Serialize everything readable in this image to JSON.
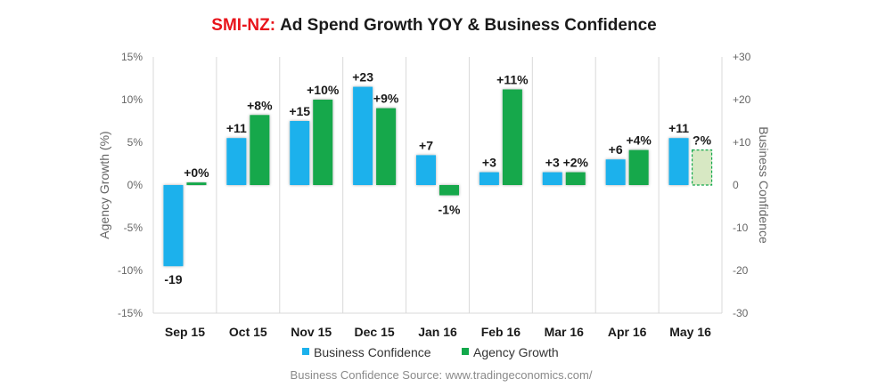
{
  "chart_data": {
    "type": "bar",
    "title_prefix": "SMI-NZ:",
    "title": "Ad Spend Growth YOY & Business Confidence",
    "ylabel": "Agency Growth (%)",
    "y2label": "Business Confidence",
    "ylim": [
      -15,
      15
    ],
    "y2lim": [
      -30,
      30
    ],
    "yticks": [
      "15%",
      "10%",
      "5%",
      "0%",
      "-5%",
      "-10%",
      "-15%"
    ],
    "y2ticks": [
      "+30",
      "+20",
      "+10",
      "0",
      "-10",
      "-20",
      "-30"
    ],
    "categories": [
      "Sep 15",
      "Oct 15",
      "Nov 15",
      "Dec 15",
      "Jan 16",
      "Feb 16",
      "Mar 16",
      "Apr 16",
      "May 16"
    ],
    "series": [
      {
        "name": "Business Confidence",
        "axis": "right",
        "color": "#1bb1ec",
        "values": [
          -19,
          11,
          15,
          23,
          7,
          3,
          3,
          6,
          11
        ],
        "labels": [
          "-19",
          "+11",
          "+15",
          "+23",
          "+7",
          "+3",
          "+3",
          "+6",
          "+11"
        ]
      },
      {
        "name": "Agency Growth",
        "axis": "left",
        "color": "#12a84b",
        "values": [
          0.3,
          8.2,
          10,
          9,
          -1.2,
          11.2,
          1.5,
          4.1,
          4.1
        ],
        "labels": [
          "+0%",
          "+8%",
          "+10%",
          "+9%",
          "-1%",
          "+11%",
          "+2%",
          "+4%",
          "?%"
        ],
        "estimated": [
          false,
          false,
          false,
          false,
          false,
          false,
          false,
          false,
          true
        ]
      }
    ],
    "grid": "vertical",
    "legend": "bottom",
    "source": "Business Confidence Source: www.tradingeconomics.com/",
    "colors": {
      "title_prefix": "#e8141b",
      "title": "#1a1a1a",
      "estimate_fill": "#d7e8c3",
      "estimate_stroke": "#12a84b",
      "axis_text": "#666666",
      "grid": "#d9d9d9"
    }
  }
}
